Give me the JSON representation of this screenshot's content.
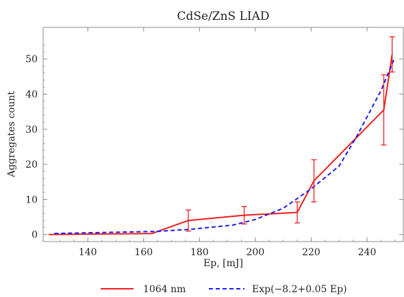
{
  "chart_data": {
    "type": "line",
    "title": "CdSe/ZnS LIAD",
    "xlabel": "Ep, [mJ]",
    "ylabel": "Aggregates count",
    "xlim": [
      124,
      253
    ],
    "ylim": [
      -2,
      59
    ],
    "xticks": [
      140,
      160,
      180,
      200,
      220,
      240
    ],
    "yticks": [
      0,
      10,
      20,
      30,
      40,
      50
    ],
    "grid": false,
    "legend_position": "bottom",
    "series": [
      {
        "name": "1064 nm",
        "color": "#ee1c1c",
        "style": "solid",
        "x": [
          126,
          163,
          176,
          196,
          215,
          221,
          246,
          249
        ],
        "y": [
          0,
          0.3,
          4,
          5.5,
          6.3,
          15.3,
          35.5,
          51.3
        ],
        "error": [
          null,
          null,
          3,
          2.5,
          3,
          6,
          10,
          5
        ]
      },
      {
        "name": "Exp(−8.2+0.05 Ep)",
        "color": "#1a1aee",
        "style": "dashed",
        "x": [
          128,
          165,
          177,
          192,
          200,
          210,
          220,
          230,
          236,
          245,
          250
        ],
        "y": [
          0.3,
          0.9,
          1.5,
          2.7,
          4.3,
          7.5,
          13,
          19.5,
          27.5,
          41,
          50.5
        ]
      }
    ]
  }
}
